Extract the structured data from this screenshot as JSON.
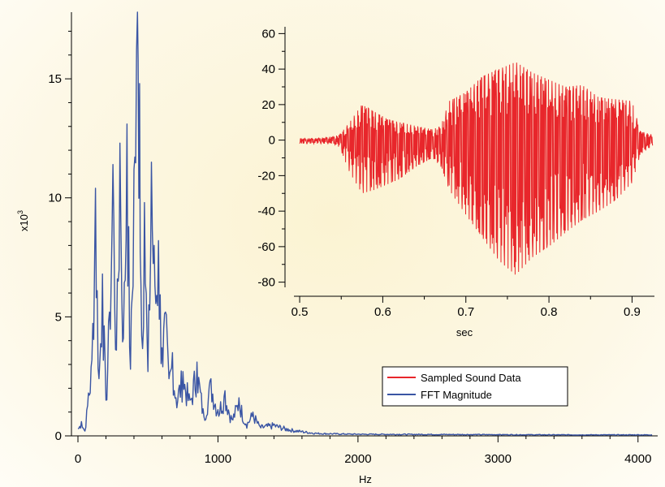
{
  "colors": {
    "fft": "#3a55a4",
    "sound": "#e8262b",
    "axis": "#000000",
    "background": "#fbf3d2"
  },
  "chart_data": [
    {
      "id": "fft",
      "type": "line",
      "xlabel": "Hz",
      "ylabel": "x10^3",
      "ylabel_base": "x10",
      "ylabel_exp": "3",
      "xlim": [
        0,
        4100
      ],
      "ylim": [
        0,
        17.8
      ],
      "xticks": [
        0,
        1000,
        2000,
        3000,
        4000
      ],
      "xtick_labels": [
        "0",
        "1000",
        "2000",
        "3000",
        "4000"
      ],
      "yticks": [
        0,
        5,
        10,
        15
      ],
      "ytick_labels": [
        "0",
        "5",
        "10",
        "15"
      ],
      "series": [
        {
          "name": "FFT Magnitude",
          "color": "#3a55a4",
          "x": [
            0,
            25,
            50,
            75,
            100,
            125,
            150,
            175,
            200,
            225,
            250,
            275,
            300,
            325,
            350,
            375,
            400,
            425,
            440,
            455,
            475,
            500,
            525,
            550,
            575,
            600,
            625,
            650,
            675,
            700,
            750,
            800,
            850,
            900,
            950,
            1000,
            1050,
            1100,
            1150,
            1200,
            1250,
            1300,
            1400,
            1500,
            1600,
            1700,
            1800,
            2000,
            2500,
            3000,
            3500,
            4000,
            4100
          ],
          "y": [
            0.3,
            0.6,
            0.2,
            1.8,
            3.2,
            10.4,
            2.4,
            6.8,
            1.5,
            5.2,
            11.4,
            3.6,
            12.3,
            4.1,
            13.1,
            2.8,
            11.2,
            17.8,
            14.8,
            4.2,
            9.8,
            2.7,
            11.5,
            6.3,
            8.2,
            3.7,
            5.2,
            2.4,
            3.5,
            1.6,
            2.7,
            1.5,
            3.1,
            0.8,
            2.4,
            1.1,
            1.9,
            0.7,
            1.6,
            0.5,
            1.0,
            0.4,
            0.5,
            0.3,
            0.2,
            0.12,
            0.1,
            0.08,
            0.07,
            0.06,
            0.05,
            0.05,
            0.05
          ]
        }
      ]
    },
    {
      "id": "sound",
      "type": "line",
      "xlabel": "sec",
      "ylabel": "",
      "xlim": [
        0.497,
        0.925
      ],
      "ylim": [
        -82,
        62
      ],
      "xticks": [
        0.5,
        0.6,
        0.7,
        0.8,
        0.9
      ],
      "xtick_labels": [
        "0.5",
        "0.6",
        "0.7",
        "0.8",
        "0.9"
      ],
      "yticks": [
        -80,
        -60,
        -40,
        -20,
        0,
        20,
        40,
        60
      ],
      "ytick_labels": [
        "-80",
        "-60",
        "-40",
        "-20",
        "0",
        "20",
        "40",
        "60"
      ],
      "envelope_x": [
        0.5,
        0.52,
        0.54,
        0.548,
        0.56,
        0.575,
        0.59,
        0.605,
        0.62,
        0.64,
        0.66,
        0.67,
        0.68,
        0.7,
        0.72,
        0.74,
        0.76,
        0.78,
        0.8,
        0.82,
        0.84,
        0.86,
        0.88,
        0.9,
        0.91,
        0.925
      ],
      "envelope_min": [
        -2,
        -2,
        -2,
        -4,
        -18,
        -30,
        -28,
        -25,
        -22,
        -15,
        -10,
        -15,
        -28,
        -42,
        -55,
        -68,
        -76,
        -66,
        -60,
        -52,
        -45,
        -40,
        -34,
        -24,
        -8,
        -3
      ],
      "envelope_max": [
        1,
        1,
        2,
        3,
        10,
        20,
        16,
        12,
        10,
        8,
        6,
        8,
        22,
        27,
        36,
        40,
        44,
        38,
        34,
        30,
        31,
        24,
        23,
        22,
        5,
        3
      ],
      "series": [
        {
          "name": "Sampled Sound Data",
          "color": "#e8262b"
        }
      ]
    }
  ],
  "legend": [
    {
      "label": "Sampled Sound Data",
      "color": "#e8262b"
    },
    {
      "label": "FFT Magnitude",
      "color": "#3a55a4"
    }
  ]
}
